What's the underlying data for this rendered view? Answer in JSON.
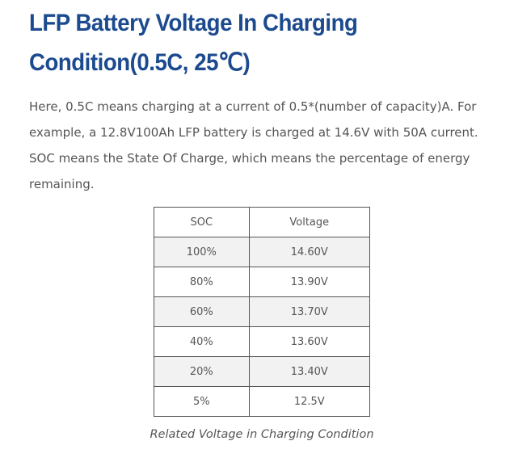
{
  "heading": {
    "title": "LFP Battery Voltage In Charging Condition(0.5C, 25℃)"
  },
  "intro": {
    "text": "Here, 0.5C means charging at a current of 0.5*(number of capacity)A. For example, a 12.8V100Ah LFP battery is charged at 14.6V with 50A current. SOC means the State Of Charge, which means the percentage of energy remaining."
  },
  "table": {
    "headers": {
      "soc": "SOC",
      "voltage": "Voltage"
    },
    "rows": [
      {
        "soc": "100%",
        "voltage": "14.60V"
      },
      {
        "soc": "80%",
        "voltage": "13.90V"
      },
      {
        "soc": "60%",
        "voltage": "13.70V"
      },
      {
        "soc": "40%",
        "voltage": "13.60V"
      },
      {
        "soc": "20%",
        "voltage": "13.40V"
      },
      {
        "soc": "5%",
        "voltage": "12.5V"
      }
    ]
  },
  "caption": {
    "text": "Related Voltage in Charging Condition"
  },
  "colors": {
    "title": "#1b4a8f",
    "body_text": "#555555",
    "row_shade": "#f2f2f2",
    "border": "#555555"
  }
}
